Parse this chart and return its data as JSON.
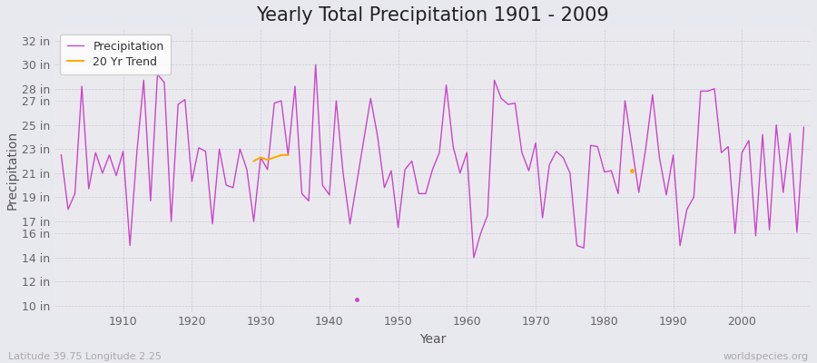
{
  "title": "Yearly Total Precipitation 1901 - 2009",
  "xlabel": "Year",
  "ylabel": "Precipitation",
  "subtitle_lat": "Latitude 39.75 Longitude 2.25",
  "watermark": "worldspecies.org",
  "yticks_labels": [
    "10 in",
    "12 in",
    "14 in",
    "16 in",
    "17 in",
    "19 in",
    "21 in",
    "23 in",
    "25 in",
    "27 in",
    "28 in",
    "30 in",
    "32 in"
  ],
  "yticks_values": [
    10,
    12,
    14,
    16,
    17,
    19,
    21,
    23,
    25,
    27,
    28,
    30,
    32
  ],
  "ylim": [
    9.5,
    33.0
  ],
  "xlim": [
    1900,
    2010
  ],
  "years": [
    1901,
    1902,
    1903,
    1904,
    1905,
    1906,
    1907,
    1908,
    1909,
    1910,
    1911,
    1912,
    1913,
    1914,
    1915,
    1916,
    1917,
    1918,
    1919,
    1920,
    1921,
    1922,
    1923,
    1924,
    1925,
    1926,
    1927,
    1928,
    1929,
    1930,
    1931,
    1932,
    1933,
    1934,
    1935,
    1936,
    1937,
    1938,
    1939,
    1940,
    1941,
    1942,
    1943,
    1946,
    1947,
    1948,
    1949,
    1950,
    1951,
    1952,
    1953,
    1954,
    1955,
    1956,
    1957,
    1958,
    1959,
    1960,
    1961,
    1962,
    1963,
    1964,
    1965,
    1966,
    1967,
    1968,
    1969,
    1970,
    1971,
    1972,
    1973,
    1974,
    1975,
    1976,
    1977,
    1978,
    1979,
    1980,
    1981,
    1982,
    1983,
    1985,
    1986,
    1987,
    1988,
    1989,
    1990,
    1991,
    1992,
    1993,
    1994,
    1995,
    1996,
    1997,
    1998,
    1999,
    2000,
    2001,
    2002,
    2003,
    2004,
    2005,
    2006,
    2007,
    2008,
    2009
  ],
  "precip": [
    22.5,
    18.0,
    19.3,
    28.2,
    19.7,
    22.7,
    21.0,
    22.5,
    20.8,
    22.8,
    15.0,
    22.7,
    28.7,
    18.7,
    29.2,
    28.5,
    17.0,
    26.7,
    27.1,
    20.3,
    23.1,
    22.8,
    16.8,
    23.0,
    20.0,
    19.8,
    23.0,
    21.3,
    17.0,
    22.3,
    21.3,
    26.8,
    27.0,
    22.5,
    28.2,
    19.3,
    18.7,
    30.0,
    20.0,
    19.2,
    27.0,
    21.0,
    16.8,
    27.2,
    24.1,
    19.8,
    21.2,
    16.5,
    21.3,
    22.0,
    19.3,
    19.3,
    21.3,
    22.7,
    28.3,
    23.2,
    21.0,
    22.7,
    14.0,
    16.0,
    17.5,
    28.7,
    27.2,
    26.7,
    26.8,
    22.7,
    21.2,
    23.5,
    17.3,
    21.7,
    22.8,
    22.3,
    21.0,
    15.0,
    14.8,
    23.3,
    23.2,
    21.1,
    21.2,
    19.3,
    27.0,
    19.4,
    23.0,
    27.5,
    22.3,
    19.2,
    22.5,
    15.0,
    18.0,
    19.0,
    27.8,
    27.8,
    28.0,
    22.7,
    23.2,
    16.0,
    22.7,
    23.7,
    15.8,
    24.2,
    16.3,
    25.0,
    19.4,
    24.3,
    16.1,
    24.8
  ],
  "isolated_dots": [
    {
      "year": 1944,
      "value": 10.5,
      "color": "#cc44cc"
    },
    {
      "year": 1984,
      "value": 21.2,
      "color": "#ffaa00"
    }
  ],
  "trend_segments": [
    {
      "years": [
        1929,
        1930,
        1931,
        1932,
        1933,
        1934
      ],
      "values": [
        22.0,
        22.3,
        22.1,
        22.3,
        22.5,
        22.5
      ]
    }
  ],
  "line_color": "#cc44cc",
  "trend_color": "#ffaa00",
  "bg_color": "#e8e8ef",
  "plot_bg": "#eaeaee",
  "grid_color": "#c8c8d8",
  "title_fontsize": 15,
  "axis_label_fontsize": 10,
  "tick_fontsize": 9,
  "legend_fontsize": 9
}
